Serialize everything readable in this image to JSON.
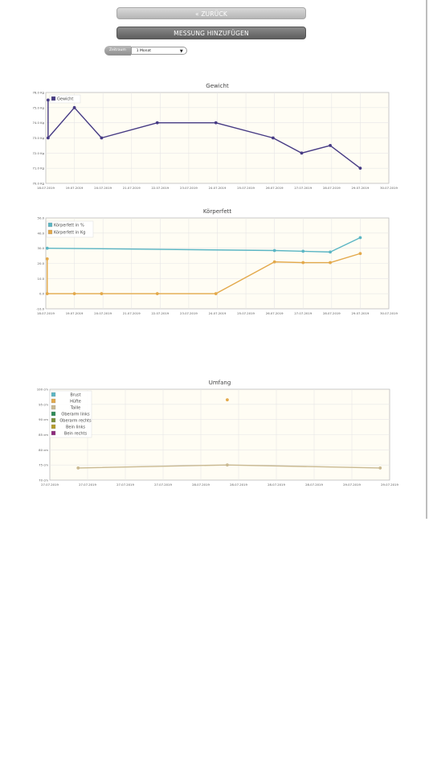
{
  "nav": {
    "back_label": "« ZURÜCK",
    "add_label": "MESSUNG HINZUFÜGEN"
  },
  "filter": {
    "label": "Zeitraum",
    "selected": "1 Monat"
  },
  "colors": {
    "plot_bg": "#fffdf4",
    "grid": "#e6e6e6",
    "weight": "#463a84",
    "bodyfat_pct": "#5bb6c4",
    "bodyfat_kg": "#e3a94b",
    "brust": "#5bb6c4",
    "huefte": "#e3a94b",
    "taille": "#c9b991",
    "oberarm_links": "#2e8b57",
    "oberarm_rechts": "#7a8f3a",
    "bein_links": "#b59c2a",
    "bein_rechts": "#8e2a7d"
  },
  "chart_data": [
    {
      "type": "line",
      "title": "Gewicht",
      "yunit": "kg",
      "ylim": [
        70,
        76
      ],
      "y_ticks": [
        "70.0 Kg",
        "71.0 Kg",
        "72.0 Kg",
        "73.0 Kg",
        "74.0 Kg",
        "75.0 Kg",
        "76.0 Kg"
      ],
      "x_ticks": [
        "18.07.2019",
        "19.07.2019",
        "20.07.2019",
        "21.07.2019",
        "22.07.2019",
        "23.07.2019",
        "24.07.2019",
        "25.07.2019",
        "26.07.2019",
        "27.07.2019",
        "28.07.2019",
        "29.07.2019",
        "30.07.2019"
      ],
      "xlim": [
        0,
        12
      ],
      "grid": true,
      "legend": "top-left",
      "series": [
        {
          "name": "Gewicht",
          "color": "weight",
          "x": [
            0.08,
            0.08,
            1.0,
            1.95,
            3.9,
            5.95,
            7.95,
            8.95,
            9.95,
            11.0
          ],
          "y": [
            75.5,
            73.0,
            75.0,
            73.0,
            74.0,
            74.0,
            73.0,
            72.0,
            72.5,
            71.0
          ]
        }
      ]
    },
    {
      "type": "line",
      "title": "Körperfett",
      "ylim": [
        -10,
        50
      ],
      "y_ticks": [
        "-10.0",
        "0.0",
        "10.0",
        "20.0",
        "30.0",
        "40.0",
        "50.0"
      ],
      "x_ticks": [
        "18.07.2019",
        "19.07.2019",
        "20.07.2019",
        "21.07.2019",
        "22.07.2019",
        "23.07.2019",
        "24.07.2019",
        "25.07.2019",
        "26.07.2019",
        "27.07.2019",
        "28.07.2019",
        "29.07.2019",
        "30.07.2019"
      ],
      "xlim": [
        0,
        12
      ],
      "grid": true,
      "legend": "top-left",
      "series": [
        {
          "name": "Körperfett in %",
          "color": "bodyfat_pct",
          "x": [
            0.05,
            8.0,
            9.0,
            9.95,
            11.0
          ],
          "y": [
            30.0,
            28.5,
            28.0,
            27.5,
            37.0
          ]
        },
        {
          "name": "Körperfett in Kg",
          "color": "bodyfat_kg",
          "x": [
            0.05,
            0.05,
            1.0,
            1.95,
            3.9,
            5.95,
            8.0,
            9.0,
            9.95,
            11.0
          ],
          "y": [
            23.0,
            0.0,
            0.0,
            0.0,
            0.0,
            0.0,
            21.0,
            20.5,
            20.5,
            26.5
          ]
        }
      ]
    },
    {
      "type": "line",
      "title": "Umfang",
      "ylim": [
        70,
        100
      ],
      "y_ticks": [
        "70 cm",
        "75 cm",
        "80 cm",
        "85 cm",
        "90 cm",
        "95 cm",
        "100 cm"
      ],
      "x_ticks": [
        "27.07.2019",
        "27.07.2019",
        "27.07.2019",
        "27.07.2019",
        "28.07.2019",
        "28.07.2019",
        "28.07.2019",
        "28.07.2019",
        "29.07.2019",
        "29.07.2019"
      ],
      "xlim": [
        0,
        9
      ],
      "grid": true,
      "legend": "top-left",
      "series": [
        {
          "name": "Brust",
          "color": "brust",
          "x": [],
          "y": []
        },
        {
          "name": "Hüfte",
          "color": "huefte",
          "x": [
            4.7
          ],
          "y": [
            96.5
          ]
        },
        {
          "name": "Taille",
          "color": "taille",
          "x": [
            0.75,
            4.7,
            8.75
          ],
          "y": [
            74.0,
            75.0,
            74.0
          ]
        },
        {
          "name": "Oberarm links",
          "color": "oberarm_links",
          "x": [],
          "y": []
        },
        {
          "name": "Oberarm rechts",
          "color": "oberarm_rechts",
          "x": [],
          "y": []
        },
        {
          "name": "Bein links",
          "color": "bein_links",
          "x": [],
          "y": []
        },
        {
          "name": "Bein rechts",
          "color": "bein_rechts",
          "x": [],
          "y": []
        }
      ]
    }
  ]
}
